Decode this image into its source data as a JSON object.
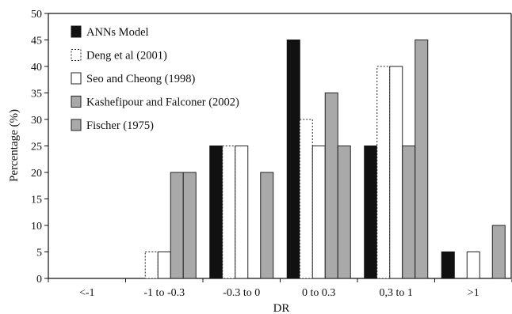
{
  "chart_data": {
    "type": "bar",
    "title": "",
    "xlabel": "DR",
    "ylabel": "Percentage (%)",
    "ylim": [
      0,
      50
    ],
    "yticks": [
      0,
      5,
      10,
      15,
      20,
      25,
      30,
      35,
      40,
      45,
      50
    ],
    "categories": [
      "<-1",
      "-1 to -0.3",
      "-0.3 to 0",
      "0 to 0.3",
      "0,3 to 1",
      ">1"
    ],
    "grid": false,
    "legend_position": "top-left",
    "series": [
      {
        "name": "ANNs Model",
        "color": "#111111",
        "pattern": "solid-black",
        "values": [
          0,
          0,
          25,
          45,
          25,
          5
        ]
      },
      {
        "name": "Deng et al (2001)",
        "color": "#ffffff",
        "pattern": "dotted-outline",
        "values": [
          0,
          5,
          25,
          30,
          40,
          0
        ]
      },
      {
        "name": "Seo and Cheong (1998)",
        "color": "#ffffff",
        "pattern": "white",
        "values": [
          0,
          5,
          25,
          25,
          40,
          5
        ]
      },
      {
        "name": "Kashefipour and Falconer (2002)",
        "color": "#a9a9a9",
        "pattern": "gray",
        "values": [
          0,
          20,
          0,
          35,
          25,
          0
        ]
      },
      {
        "name": "Fischer (1975)",
        "color": "#a9a9a9",
        "pattern": "gray",
        "values": [
          0,
          20,
          20,
          25,
          45,
          10
        ]
      }
    ]
  }
}
